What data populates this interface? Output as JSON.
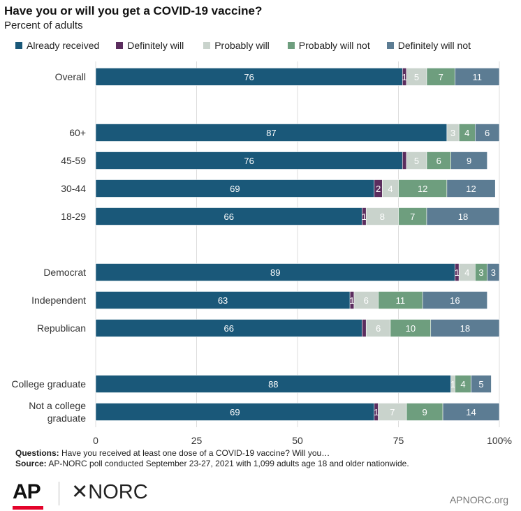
{
  "title": "Have you or will you get a COVID-19 vaccine?",
  "subtitle": "Percent of adults",
  "chart_data": {
    "type": "bar",
    "orientation": "horizontal",
    "stacked": true,
    "xlim": [
      0,
      100
    ],
    "xticks": [
      "0",
      "25",
      "50",
      "75",
      "100%"
    ],
    "grid": true,
    "legend_position": "top",
    "categories": [
      "Overall",
      "60+",
      "45-59",
      "30-44",
      "18-29",
      "Democrat",
      "Independent",
      "Republican",
      "College graduate",
      "Not a college graduate"
    ],
    "groups": [
      [
        0
      ],
      [
        1,
        2,
        3,
        4
      ],
      [
        5,
        6,
        7
      ],
      [
        8,
        9
      ]
    ],
    "series": [
      {
        "name": "Already received",
        "color": "#1a5879",
        "values": [
          76,
          87,
          76,
          69,
          66,
          89,
          63,
          66,
          88,
          69
        ]
      },
      {
        "name": "Definitely will",
        "color": "#5b2d5e",
        "values": [
          1,
          0,
          1,
          2,
          1,
          1,
          1,
          1,
          0,
          1
        ]
      },
      {
        "name": "Probably will",
        "color": "#c9d3cc",
        "values": [
          5,
          3,
          5,
          4,
          8,
          4,
          6,
          6,
          1,
          7
        ]
      },
      {
        "name": "Probably will not",
        "color": "#6e9e7e",
        "values": [
          7,
          4,
          6,
          12,
          7,
          3,
          11,
          10,
          4,
          9
        ]
      },
      {
        "name": "Definitely will not",
        "color": "#5c7c93",
        "values": [
          11,
          6,
          9,
          12,
          18,
          3,
          16,
          18,
          5,
          14
        ]
      }
    ],
    "labels": [
      [
        "76",
        "1",
        "5",
        "7",
        "11"
      ],
      [
        "87",
        "",
        "3",
        "4",
        "6"
      ],
      [
        "76",
        "",
        "5",
        "6",
        "9"
      ],
      [
        "69",
        "2",
        "4",
        "12",
        "12"
      ],
      [
        "66",
        "1",
        "8",
        "7",
        "18"
      ],
      [
        "89",
        "1",
        "4",
        "3",
        "3"
      ],
      [
        "63",
        "1",
        "6",
        "11",
        "16"
      ],
      [
        "66",
        "",
        "6",
        "10",
        "18"
      ],
      [
        "88",
        "",
        "1",
        "4",
        "5"
      ],
      [
        "69",
        "1",
        "7",
        "9",
        "14"
      ]
    ]
  },
  "footer": {
    "questions_label": "Questions:",
    "questions_text": "Have you received at least one dose of a COVID-19 vaccine? Will you…",
    "source_label": "Source:",
    "source_text": "AP-NORC poll conducted September 23-27, 2021 with 1,099 adults age 18 and older nationwide."
  },
  "brand": {
    "ap": "AP",
    "norc": "✕NORC",
    "site": "APNORC.org"
  }
}
